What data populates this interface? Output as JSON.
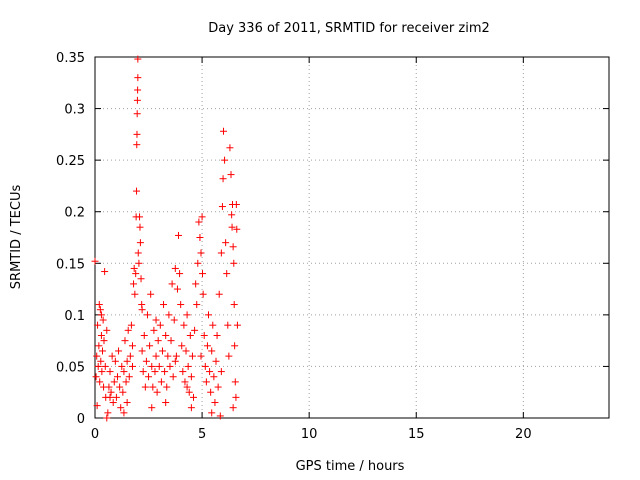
{
  "chart_data": {
    "type": "scatter",
    "title": "Day 336 of 2011, SRMTID for receiver zim2",
    "xlabel": "GPS time / hours",
    "ylabel": "SRMTID / TECUs",
    "xlim": [
      0,
      24
    ],
    "ylim": [
      0,
      0.35
    ],
    "xticks": [
      0,
      5,
      10,
      15,
      20
    ],
    "xtick_labels": [
      "0",
      "5",
      "10",
      "15",
      "20"
    ],
    "yticks": [
      0,
      0.05,
      0.1,
      0.15,
      0.2,
      0.25,
      0.3,
      0.35
    ],
    "ytick_labels": [
      "0",
      "0.05",
      "0.1",
      "0.15",
      "0.2",
      "0.25",
      "0.3",
      "0.35"
    ],
    "grid": true,
    "legend": "none",
    "marker": "plus",
    "color": "#ff0000",
    "series": [
      {
        "name": "SRMTID",
        "points": [
          [
            0.0,
            0.152
          ],
          [
            0.05,
            0.04
          ],
          [
            0.08,
            0.06
          ],
          [
            0.1,
            0.012
          ],
          [
            0.12,
            0.09
          ],
          [
            0.15,
            0.05
          ],
          [
            0.18,
            0.07
          ],
          [
            0.2,
            0.11
          ],
          [
            0.22,
            0.035
          ],
          [
            0.25,
            0.105
          ],
          [
            0.27,
            0.055
          ],
          [
            0.3,
            0.08
          ],
          [
            0.32,
            0.045
          ],
          [
            0.35,
            0.065
          ],
          [
            0.38,
            0.095
          ],
          [
            0.4,
            0.03
          ],
          [
            0.42,
            0.075
          ],
          [
            0.45,
            0.142
          ],
          [
            0.48,
            0.05
          ],
          [
            0.5,
            0.02
          ],
          [
            0.55,
            0.0
          ],
          [
            0.6,
            0.005
          ],
          [
            0.65,
            0.03
          ],
          [
            0.7,
            0.045
          ],
          [
            0.75,
            0.025
          ],
          [
            0.8,
            0.06
          ],
          [
            0.85,
            0.015
          ],
          [
            0.9,
            0.035
          ],
          [
            0.95,
            0.055
          ],
          [
            1.0,
            0.02
          ],
          [
            1.05,
            0.04
          ],
          [
            1.1,
            0.065
          ],
          [
            1.15,
            0.03
          ],
          [
            1.2,
            0.01
          ],
          [
            1.25,
            0.05
          ],
          [
            1.3,
            0.025
          ],
          [
            1.35,
            0.045
          ],
          [
            1.4,
            0.075
          ],
          [
            1.45,
            0.035
          ],
          [
            1.5,
            0.055
          ],
          [
            1.55,
            0.085
          ],
          [
            1.6,
            0.04
          ],
          [
            1.65,
            0.06
          ],
          [
            1.7,
            0.09
          ],
          [
            1.75,
            0.05
          ],
          [
            1.8,
            0.13
          ],
          [
            1.83,
            0.145
          ],
          [
            1.86,
            0.12
          ],
          [
            1.9,
            0.14
          ],
          [
            1.92,
            0.195
          ],
          [
            1.94,
            0.22
          ],
          [
            1.95,
            0.265
          ],
          [
            1.96,
            0.275
          ],
          [
            1.97,
            0.295
          ],
          [
            1.98,
            0.308
          ],
          [
            1.99,
            0.318
          ],
          [
            2.0,
            0.33
          ],
          [
            2.0,
            0.348
          ],
          [
            2.02,
            0.16
          ],
          [
            2.05,
            0.15
          ],
          [
            2.08,
            0.195
          ],
          [
            2.1,
            0.185
          ],
          [
            2.12,
            0.17
          ],
          [
            2.15,
            0.135
          ],
          [
            2.18,
            0.11
          ],
          [
            2.2,
            0.065
          ],
          [
            2.25,
            0.045
          ],
          [
            2.3,
            0.08
          ],
          [
            2.35,
            0.03
          ],
          [
            2.4,
            0.055
          ],
          [
            2.45,
            0.1
          ],
          [
            2.5,
            0.04
          ],
          [
            2.55,
            0.07
          ],
          [
            2.6,
            0.12
          ],
          [
            2.65,
            0.05
          ],
          [
            2.7,
            0.03
          ],
          [
            2.75,
            0.085
          ],
          [
            2.8,
            0.045
          ],
          [
            2.85,
            0.06
          ],
          [
            2.9,
            0.025
          ],
          [
            2.95,
            0.075
          ],
          [
            3.0,
            0.05
          ],
          [
            3.05,
            0.09
          ],
          [
            3.1,
            0.035
          ],
          [
            3.15,
            0.065
          ],
          [
            3.2,
            0.11
          ],
          [
            3.25,
            0.045
          ],
          [
            3.3,
            0.08
          ],
          [
            3.35,
            0.03
          ],
          [
            3.4,
            0.06
          ],
          [
            3.45,
            0.1
          ],
          [
            3.5,
            0.05
          ],
          [
            3.55,
            0.075
          ],
          [
            3.6,
            0.13
          ],
          [
            3.65,
            0.04
          ],
          [
            3.7,
            0.095
          ],
          [
            3.75,
            0.145
          ],
          [
            3.8,
            0.06
          ],
          [
            3.85,
            0.125
          ],
          [
            3.9,
            0.177
          ],
          [
            3.95,
            0.14
          ],
          [
            4.0,
            0.11
          ],
          [
            4.05,
            0.07
          ],
          [
            4.1,
            0.045
          ],
          [
            4.15,
            0.09
          ],
          [
            4.2,
            0.035
          ],
          [
            4.25,
            0.065
          ],
          [
            4.3,
            0.1
          ],
          [
            4.35,
            0.05
          ],
          [
            4.4,
            0.025
          ],
          [
            4.45,
            0.08
          ],
          [
            4.5,
            0.04
          ],
          [
            4.55,
            0.06
          ],
          [
            4.6,
            0.02
          ],
          [
            4.65,
            0.085
          ],
          [
            4.7,
            0.13
          ],
          [
            4.75,
            0.11
          ],
          [
            4.8,
            0.15
          ],
          [
            4.85,
            0.19
          ],
          [
            4.9,
            0.175
          ],
          [
            4.95,
            0.16
          ],
          [
            5.0,
            0.195
          ],
          [
            5.02,
            0.14
          ],
          [
            5.05,
            0.12
          ],
          [
            5.1,
            0.08
          ],
          [
            5.15,
            0.05
          ],
          [
            5.2,
            0.035
          ],
          [
            5.25,
            0.07
          ],
          [
            5.3,
            0.1
          ],
          [
            5.35,
            0.045
          ],
          [
            5.4,
            0.025
          ],
          [
            5.45,
            0.065
          ],
          [
            5.5,
            0.09
          ],
          [
            5.55,
            0.04
          ],
          [
            5.6,
            0.015
          ],
          [
            5.65,
            0.055
          ],
          [
            5.7,
            0.08
          ],
          [
            5.75,
            0.03
          ],
          [
            5.8,
            0.12
          ],
          [
            5.85,
            0.002
          ],
          [
            5.9,
            0.16
          ],
          [
            5.95,
            0.205
          ],
          [
            5.98,
            0.232
          ],
          [
            6.0,
            0.278
          ],
          [
            6.05,
            0.25
          ],
          [
            6.1,
            0.17
          ],
          [
            6.15,
            0.14
          ],
          [
            6.2,
            0.09
          ],
          [
            6.25,
            0.06
          ],
          [
            6.3,
            0.262
          ],
          [
            6.35,
            0.236
          ],
          [
            6.38,
            0.197
          ],
          [
            6.4,
            0.185
          ],
          [
            6.42,
            0.207
          ],
          [
            6.45,
            0.166
          ],
          [
            6.48,
            0.15
          ],
          [
            6.5,
            0.11
          ],
          [
            6.52,
            0.07
          ],
          [
            6.55,
            0.035
          ],
          [
            6.58,
            0.02
          ],
          [
            6.6,
            0.207
          ],
          [
            6.62,
            0.183
          ],
          [
            6.65,
            0.09
          ],
          [
            0.3,
            0.1
          ],
          [
            0.55,
            0.085
          ],
          [
            1.35,
            0.005
          ],
          [
            1.75,
            0.07
          ],
          [
            2.2,
            0.105
          ],
          [
            2.85,
            0.095
          ],
          [
            3.3,
            0.015
          ],
          [
            3.75,
            0.055
          ],
          [
            4.3,
            0.03
          ],
          [
            4.95,
            0.06
          ],
          [
            5.45,
            0.005
          ],
          [
            5.9,
            0.045
          ],
          [
            6.45,
            0.01
          ],
          [
            0.7,
            0.02
          ],
          [
            1.5,
            0.015
          ],
          [
            2.65,
            0.01
          ],
          [
            4.5,
            0.01
          ]
        ]
      }
    ]
  }
}
